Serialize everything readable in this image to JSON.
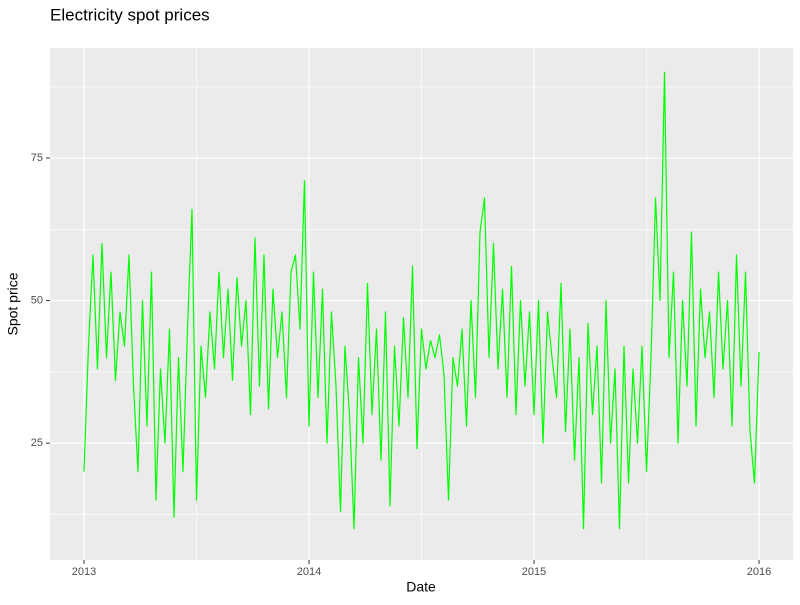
{
  "chart_data": {
    "type": "line",
    "title": "Electricity spot prices",
    "x_label": "Date",
    "y_label": "Spot price",
    "color": "#00ff00",
    "grid": true,
    "xlim": [
      2012.849,
      2016.151
    ],
    "xticks": [
      2013,
      2014,
      2015,
      2016
    ],
    "ylim": [
      4.5,
      94.3
    ],
    "yticks": [
      25,
      50,
      75
    ],
    "x": [
      2013.0,
      2013.02,
      2013.04,
      2013.06,
      2013.08,
      2013.1,
      2013.12,
      2013.14,
      2013.16,
      2013.18,
      2013.2,
      2013.22,
      2013.24,
      2013.26,
      2013.28,
      2013.3,
      2013.32,
      2013.34,
      2013.36,
      2013.38,
      2013.4,
      2013.42,
      2013.44,
      2013.46,
      2013.48,
      2013.5,
      2013.52,
      2013.54,
      2013.56,
      2013.58,
      2013.6,
      2013.62,
      2013.64,
      2013.66,
      2013.68,
      2013.7,
      2013.72,
      2013.74,
      2013.76,
      2013.78,
      2013.8,
      2013.82,
      2013.84,
      2013.86,
      2013.88,
      2013.9,
      2013.92,
      2013.94,
      2013.96,
      2013.98,
      2014.0,
      2014.02,
      2014.04,
      2014.06,
      2014.08,
      2014.1,
      2014.12,
      2014.14,
      2014.16,
      2014.18,
      2014.2,
      2014.22,
      2014.24,
      2014.26,
      2014.28,
      2014.3,
      2014.32,
      2014.34,
      2014.36,
      2014.38,
      2014.4,
      2014.42,
      2014.44,
      2014.46,
      2014.48,
      2014.5,
      2014.52,
      2014.54,
      2014.56,
      2014.58,
      2014.6,
      2014.62,
      2014.64,
      2014.66,
      2014.68,
      2014.7,
      2014.72,
      2014.74,
      2014.76,
      2014.78,
      2014.8,
      2014.82,
      2014.84,
      2014.86,
      2014.88,
      2014.9,
      2014.92,
      2014.94,
      2014.96,
      2014.98,
      2015.0,
      2015.02,
      2015.04,
      2015.06,
      2015.08,
      2015.1,
      2015.12,
      2015.14,
      2015.16,
      2015.18,
      2015.2,
      2015.22,
      2015.24,
      2015.26,
      2015.28,
      2015.3,
      2015.32,
      2015.34,
      2015.36,
      2015.38,
      2015.4,
      2015.42,
      2015.44,
      2015.46,
      2015.48,
      2015.5,
      2015.52,
      2015.54,
      2015.56,
      2015.58,
      2015.6,
      2015.62,
      2015.64,
      2015.66,
      2015.68,
      2015.7,
      2015.72,
      2015.74,
      2015.76,
      2015.78,
      2015.8,
      2015.82,
      2015.84,
      2015.86,
      2015.88,
      2015.9,
      2015.92,
      2015.94,
      2015.96,
      2015.98,
      2016.0
    ],
    "values": [
      20,
      42,
      58,
      38,
      60,
      40,
      55,
      36,
      48,
      42,
      58,
      35,
      20,
      50,
      28,
      55,
      15,
      38,
      25,
      45,
      12,
      40,
      20,
      45,
      66,
      15,
      42,
      33,
      48,
      38,
      55,
      40,
      52,
      36,
      54,
      42,
      50,
      30,
      61,
      35,
      58,
      31,
      52,
      40,
      48,
      33,
      55,
      58,
      45,
      71,
      28,
      55,
      33,
      52,
      25,
      48,
      35,
      13,
      42,
      30,
      10,
      40,
      25,
      53,
      30,
      45,
      22,
      48,
      14,
      42,
      28,
      47,
      33,
      56,
      24,
      45,
      38,
      43,
      40,
      44,
      37,
      15,
      40,
      35,
      45,
      28,
      50,
      33,
      62,
      68,
      40,
      60,
      38,
      52,
      33,
      56,
      30,
      50,
      35,
      48,
      30,
      50,
      25,
      48,
      40,
      33,
      53,
      27,
      45,
      22,
      40,
      10,
      46,
      30,
      42,
      18,
      50,
      25,
      38,
      10,
      42,
      18,
      38,
      25,
      42,
      20,
      40,
      68,
      50,
      90,
      40,
      55,
      25,
      50,
      35,
      62,
      28,
      52,
      40,
      48,
      33,
      55,
      38,
      50,
      28,
      58,
      35,
      55,
      27,
      18,
      41
    ]
  }
}
